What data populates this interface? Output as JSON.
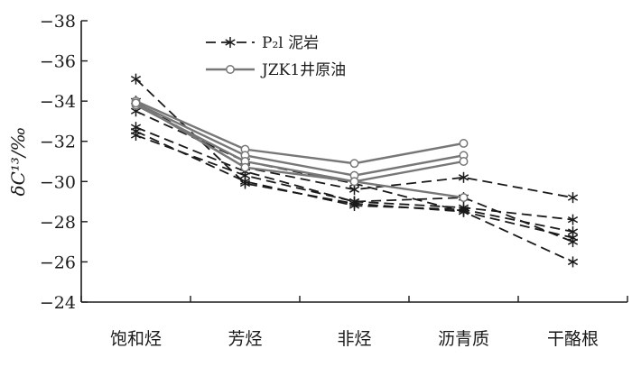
{
  "chart_data": {
    "type": "line",
    "title": "",
    "xlabel": "",
    "ylabel": "δC¹³/‰",
    "ylim": [
      -24,
      -38
    ],
    "y_ticks": [
      -38,
      -36,
      -34,
      -32,
      -30,
      -28,
      -26,
      -24
    ],
    "y_tick_labels": [
      "−38",
      "−36",
      "−34",
      "−32",
      "−30",
      "−28",
      "−26",
      "−24"
    ],
    "categories": [
      "饱和烃",
      "芳烃",
      "非烃",
      "沥青质",
      "干酪根"
    ],
    "grid": false,
    "legend_position": "top-center",
    "legend": [
      {
        "label": "P₂l 泥岩",
        "style": "dashed",
        "marker": "asterisk",
        "color": "#1a1a1a"
      },
      {
        "label": "JZK1井原油",
        "style": "solid",
        "marker": "circle",
        "color": "#777777"
      }
    ],
    "groups": [
      {
        "group": "P₂l 泥岩",
        "style": "dashed",
        "marker": "asterisk",
        "color": "#1a1a1a",
        "lines": [
          [
            -35.1,
            -29.9,
            -28.9,
            -28.5,
            -27.2
          ],
          [
            -34.0,
            -30.7,
            -29.6,
            -30.2,
            -29.2
          ],
          [
            -33.5,
            -31.0,
            -29.9,
            -28.5,
            -26.0
          ],
          [
            -32.7,
            -30.5,
            -29.0,
            -28.7,
            -28.1
          ],
          [
            -32.5,
            -30.0,
            -28.8,
            -28.6,
            -27.5
          ],
          [
            -32.3,
            -30.3,
            -29.0,
            -29.2,
            -27.0
          ]
        ]
      },
      {
        "group": "JZK1井原油",
        "style": "solid",
        "marker": "circle",
        "color": "#777777",
        "lines": [
          [
            -34.0,
            -31.6,
            -30.9,
            -31.9
          ],
          [
            -33.9,
            -31.3,
            -30.3,
            -31.3
          ],
          [
            -33.8,
            -31.0,
            -30.0,
            -31.0
          ],
          [
            -33.9,
            -30.7,
            -30.0,
            -29.2
          ]
        ]
      }
    ]
  }
}
